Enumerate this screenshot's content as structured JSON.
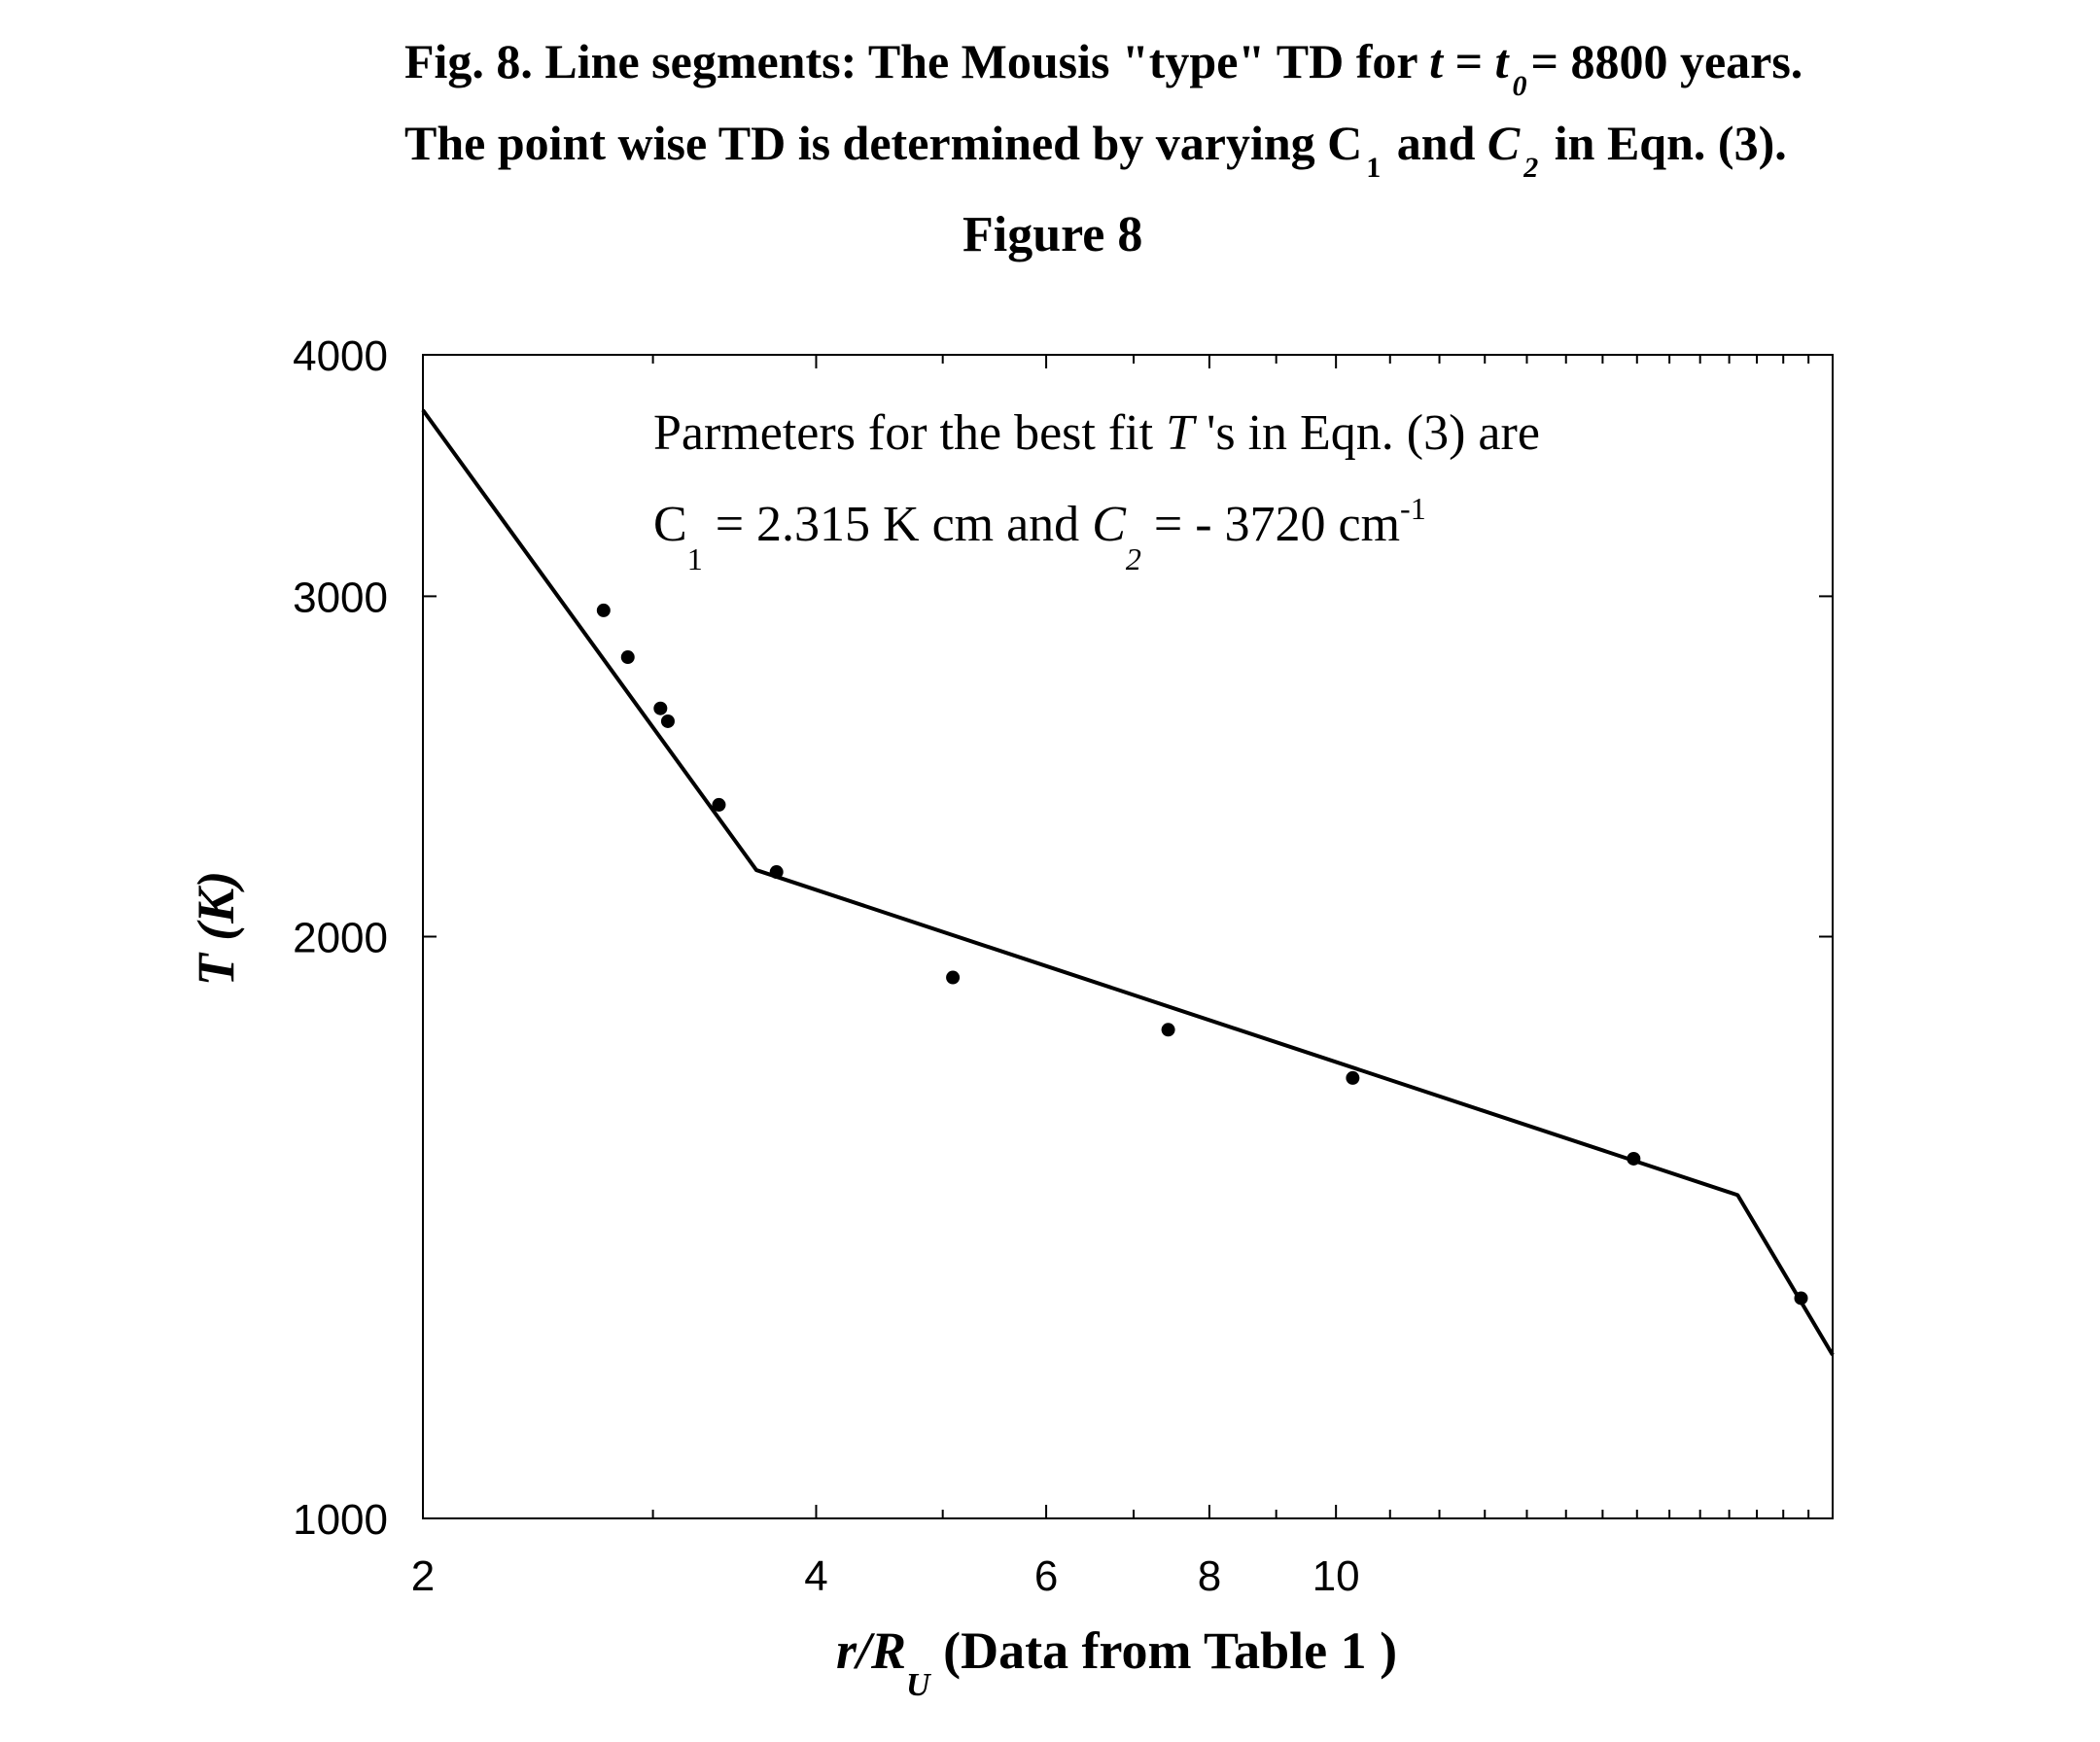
{
  "caption": {
    "line1": {
      "a": "Fig. 8. Line segments: The Mousis \"type\" TD for ",
      "t": "t",
      "eq": " = ",
      "t0": "t",
      "t0_sub": "0",
      "b": "= 8800 years."
    },
    "line2": {
      "a": "The point wise TD is determined by varying C",
      "c1_sub": "1",
      "b": " and ",
      "c2": "C",
      "c2_sub": "2",
      "c": " in Eqn. (3)."
    },
    "figure_label": "Figure 8"
  },
  "chart_data": {
    "type": "scatter",
    "x_scale": "log",
    "y_scale": "log",
    "xlim": [
      2,
      24
    ],
    "ylim": [
      1000,
      4000
    ],
    "x_ticks": [
      2,
      4,
      6,
      8,
      10
    ],
    "x_tick_labels": [
      "2",
      "4",
      "6",
      "8",
      "10"
    ],
    "y_ticks": [
      1000,
      2000,
      3000,
      4000
    ],
    "y_tick_labels": [
      "1000",
      "2000",
      "3000",
      "4000"
    ],
    "xlabel": {
      "main": "r/R",
      "sub": "U",
      "rest": " (Data from Table 1 )"
    },
    "ylabel": "T (K)",
    "grid": false,
    "series": [
      {
        "kind": "points",
        "x": [
          2.75,
          2.87,
          3.04,
          3.08,
          3.37,
          3.73,
          5.09,
          7.44,
          10.3,
          16.9,
          22.7
        ],
        "y": [
          2950,
          2790,
          2625,
          2585,
          2340,
          2160,
          1905,
          1790,
          1690,
          1535,
          1300
        ]
      },
      {
        "kind": "line",
        "x": [
          2.0,
          3.6,
          20.3,
          24.0
        ],
        "y": [
          3745,
          2165,
          1470,
          1215
        ]
      }
    ],
    "annotation": {
      "line1_a": "Parmeters for the best fit ",
      "line1_T": "T",
      "line1_b": " 's in Eqn. (3) are",
      "line2_c1": "C",
      "line2_c1_sub": "1",
      "line2_a": " = 2.315 K cm and ",
      "line2_c2": "C",
      "line2_c2_sub": "2",
      "line2_b": " = - 3720 cm",
      "line2_sup": "-1"
    }
  }
}
